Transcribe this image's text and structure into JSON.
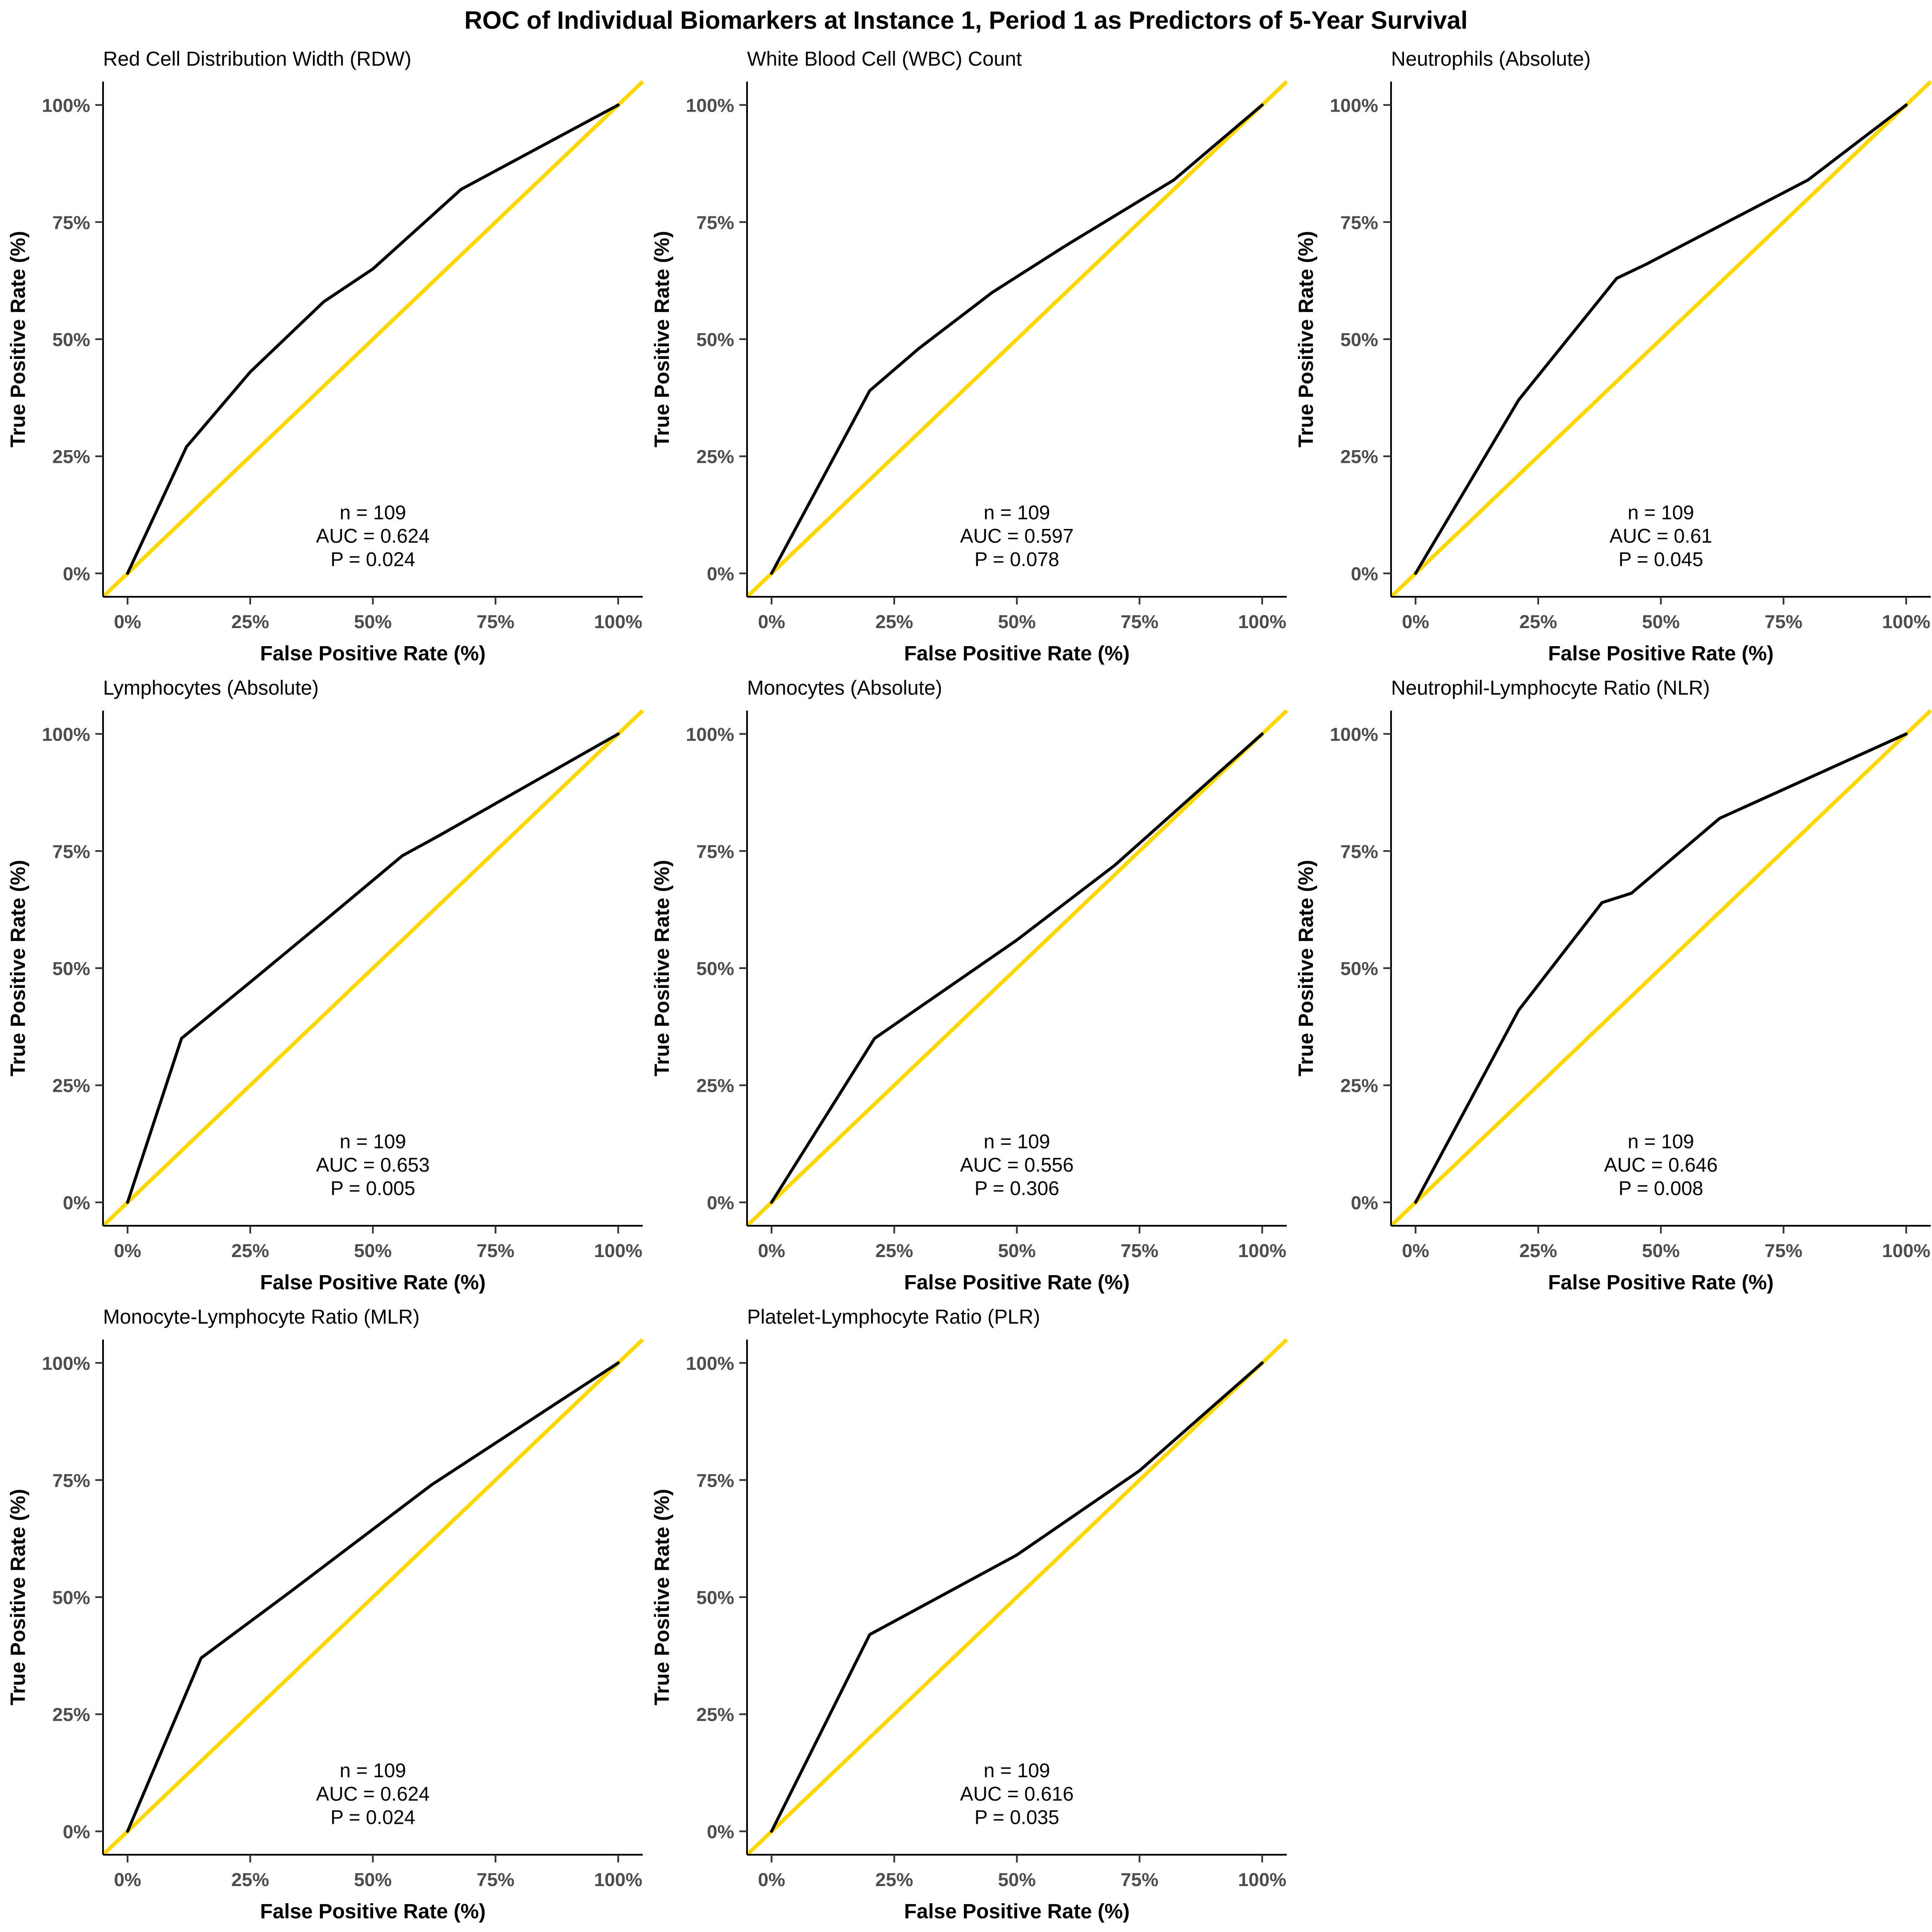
{
  "title": "ROC of Individual Biomarkers at Instance 1, Period 1 as Predictors of 5-Year Survival",
  "axes": {
    "x_label": "False Positive Rate (%)",
    "y_label": "True Positive Rate (%)",
    "tick_labels": [
      "0%",
      "25%",
      "50%",
      "75%",
      "100%"
    ],
    "tick_values": [
      0,
      25,
      50,
      75,
      100
    ],
    "xlim": [
      0,
      100
    ],
    "ylim": [
      0,
      100
    ]
  },
  "colors": {
    "roc_line": "#000000",
    "diagonal_line": "#FFD700",
    "axis_line": "#000000",
    "tick_mark": "#333333",
    "tick_text": "#4D4D4D",
    "label_text": "#000000"
  },
  "chart_data": [
    {
      "type": "line",
      "title": "Red Cell Distribution Width (RDW)",
      "xlabel": "False Positive Rate (%)",
      "ylabel": "True Positive Rate (%)",
      "xlim": [
        0,
        100
      ],
      "ylim": [
        0,
        100
      ],
      "annotation": {
        "n": "n = 109",
        "auc": "AUC = 0.624",
        "p": "P = 0.024"
      },
      "series": [
        {
          "name": "ROC",
          "points": [
            [
              0,
              0
            ],
            [
              12,
              27
            ],
            [
              25,
              43
            ],
            [
              40,
              58
            ],
            [
              50,
              65
            ],
            [
              68,
              82
            ],
            [
              100,
              100
            ]
          ]
        },
        {
          "name": "Reference diagonal",
          "points": [
            [
              0,
              0
            ],
            [
              100,
              100
            ]
          ]
        }
      ]
    },
    {
      "type": "line",
      "title": "White Blood Cell (WBC) Count",
      "xlabel": "False Positive Rate (%)",
      "ylabel": "True Positive Rate (%)",
      "xlim": [
        0,
        100
      ],
      "ylim": [
        0,
        100
      ],
      "annotation": {
        "n": "n = 109",
        "auc": "AUC = 0.597",
        "p": "P = 0.078"
      },
      "series": [
        {
          "name": "ROC",
          "points": [
            [
              0,
              0
            ],
            [
              20,
              39
            ],
            [
              30,
              48
            ],
            [
              45,
              60
            ],
            [
              60,
              70
            ],
            [
              82,
              84
            ],
            [
              100,
              100
            ]
          ]
        },
        {
          "name": "Reference diagonal",
          "points": [
            [
              0,
              0
            ],
            [
              100,
              100
            ]
          ]
        }
      ]
    },
    {
      "type": "line",
      "title": "Neutrophils (Absolute)",
      "xlabel": "False Positive Rate (%)",
      "ylabel": "True Positive Rate (%)",
      "xlim": [
        0,
        100
      ],
      "ylim": [
        0,
        100
      ],
      "annotation": {
        "n": "n = 109",
        "auc": "AUC = 0.61",
        "p": "P = 0.045"
      },
      "series": [
        {
          "name": "ROC",
          "points": [
            [
              0,
              0
            ],
            [
              21,
              37
            ],
            [
              41,
              63
            ],
            [
              47,
              66
            ],
            [
              80,
              84
            ],
            [
              100,
              100
            ]
          ]
        },
        {
          "name": "Reference diagonal",
          "points": [
            [
              0,
              0
            ],
            [
              100,
              100
            ]
          ]
        }
      ]
    },
    {
      "type": "line",
      "title": "Lymphocytes (Absolute)",
      "xlabel": "False Positive Rate (%)",
      "ylabel": "True Positive Rate (%)",
      "xlim": [
        0,
        100
      ],
      "ylim": [
        0,
        100
      ],
      "annotation": {
        "n": "n = 109",
        "auc": "AUC = 0.653",
        "p": "P = 0.005"
      },
      "series": [
        {
          "name": "ROC",
          "points": [
            [
              0,
              0
            ],
            [
              11,
              35
            ],
            [
              25,
              47
            ],
            [
              40,
              60
            ],
            [
              56,
              74
            ],
            [
              63,
              78
            ],
            [
              100,
              100
            ]
          ]
        },
        {
          "name": "Reference diagonal",
          "points": [
            [
              0,
              0
            ],
            [
              100,
              100
            ]
          ]
        }
      ]
    },
    {
      "type": "line",
      "title": "Monocytes (Absolute)",
      "xlabel": "False Positive Rate (%)",
      "ylabel": "True Positive Rate (%)",
      "xlim": [
        0,
        100
      ],
      "ylim": [
        0,
        100
      ],
      "annotation": {
        "n": "n = 109",
        "auc": "AUC = 0.556",
        "p": "P = 0.306"
      },
      "series": [
        {
          "name": "ROC",
          "points": [
            [
              0,
              0
            ],
            [
              21,
              35
            ],
            [
              50,
              56
            ],
            [
              70,
              72
            ],
            [
              100,
              100
            ]
          ]
        },
        {
          "name": "Reference diagonal",
          "points": [
            [
              0,
              0
            ],
            [
              100,
              100
            ]
          ]
        }
      ]
    },
    {
      "type": "line",
      "title": "Neutrophil-Lymphocyte Ratio (NLR)",
      "xlabel": "False Positive Rate (%)",
      "ylabel": "True Positive Rate (%)",
      "xlim": [
        0,
        100
      ],
      "ylim": [
        0,
        100
      ],
      "annotation": {
        "n": "n = 109",
        "auc": "AUC = 0.646",
        "p": "P = 0.008"
      },
      "series": [
        {
          "name": "ROC",
          "points": [
            [
              0,
              0
            ],
            [
              21,
              41
            ],
            [
              38,
              64
            ],
            [
              44,
              66
            ],
            [
              62,
              82
            ],
            [
              100,
              100
            ]
          ]
        },
        {
          "name": "Reference diagonal",
          "points": [
            [
              0,
              0
            ],
            [
              100,
              100
            ]
          ]
        }
      ]
    },
    {
      "type": "line",
      "title": "Monocyte-Lymphocyte Ratio (MLR)",
      "xlabel": "False Positive Rate (%)",
      "ylabel": "True Positive Rate (%)",
      "xlim": [
        0,
        100
      ],
      "ylim": [
        0,
        100
      ],
      "annotation": {
        "n": "n = 109",
        "auc": "AUC = 0.624",
        "p": "P = 0.024"
      },
      "series": [
        {
          "name": "ROC",
          "points": [
            [
              0,
              0
            ],
            [
              15,
              37
            ],
            [
              33,
              51
            ],
            [
              62,
              74
            ],
            [
              100,
              100
            ]
          ]
        },
        {
          "name": "Reference diagonal",
          "points": [
            [
              0,
              0
            ],
            [
              100,
              100
            ]
          ]
        }
      ]
    },
    {
      "type": "line",
      "title": "Platelet-Lymphocyte Ratio (PLR)",
      "xlabel": "False Positive Rate (%)",
      "ylabel": "True Positive Rate (%)",
      "xlim": [
        0,
        100
      ],
      "ylim": [
        0,
        100
      ],
      "annotation": {
        "n": "n = 109",
        "auc": "AUC = 0.616",
        "p": "P = 0.035"
      },
      "series": [
        {
          "name": "ROC",
          "points": [
            [
              0,
              0
            ],
            [
              20,
              42
            ],
            [
              50,
              59
            ],
            [
              75,
              77
            ],
            [
              100,
              100
            ]
          ]
        },
        {
          "name": "Reference diagonal",
          "points": [
            [
              0,
              0
            ],
            [
              100,
              100
            ]
          ]
        }
      ]
    }
  ]
}
